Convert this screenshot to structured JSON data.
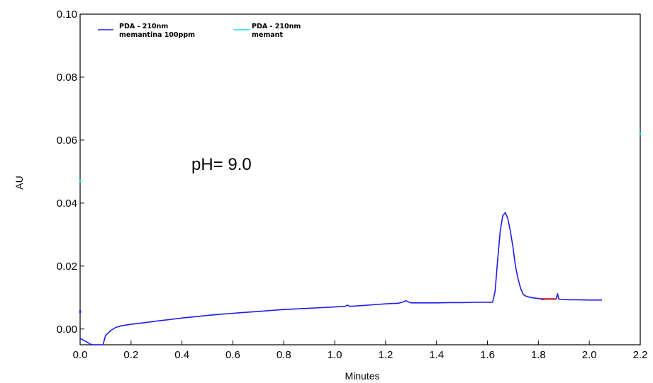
{
  "chart_data": {
    "type": "line",
    "xlabel": "Minutes",
    "ylabel": "AU",
    "xlim": [
      0.0,
      2.2
    ],
    "ylim": [
      -0.005,
      0.1
    ],
    "x_ticks": [
      "0.0",
      "0.2",
      "0.4",
      "0.6",
      "0.8",
      "1.0",
      "1.2",
      "1.4",
      "1.6",
      "1.8",
      "2.0",
      "2.2"
    ],
    "y_ticks": [
      "0.00",
      "0.02",
      "0.04",
      "0.06",
      "0.08",
      "0.10"
    ],
    "legend": [
      {
        "line1": "PDA - 210nm",
        "line2": "memantina 100ppm",
        "color": "#1c1cf0"
      },
      {
        "line1": "PDA - 210nm",
        "line2": "memant",
        "color": "#00e0e8"
      }
    ],
    "annotation": "pH= 9.0",
    "series": [
      {
        "color": "#1c1cf0",
        "x": [
          0.0,
          0.01,
          0.02,
          0.03,
          0.04,
          0.05,
          0.06,
          0.07,
          0.08,
          0.09,
          0.095,
          0.1,
          0.12,
          0.14,
          0.16,
          0.2,
          0.25,
          0.3,
          0.35,
          0.4,
          0.45,
          0.5,
          0.55,
          0.6,
          0.65,
          0.7,
          0.75,
          0.8,
          0.85,
          0.9,
          0.95,
          1.0,
          1.04,
          1.05,
          1.06,
          1.1,
          1.15,
          1.2,
          1.25,
          1.27,
          1.28,
          1.29,
          1.3,
          1.35,
          1.4,
          1.45,
          1.5,
          1.55,
          1.6,
          1.62,
          1.63,
          1.64,
          1.65,
          1.66,
          1.67,
          1.68,
          1.69,
          1.7,
          1.71,
          1.72,
          1.73,
          1.74,
          1.75,
          1.77,
          1.79,
          1.81,
          1.83,
          1.85,
          1.87,
          1.875,
          1.88,
          1.885,
          1.89,
          1.92,
          1.95,
          2.0,
          2.05
        ],
        "y": [
          -0.003,
          -0.0034,
          -0.0038,
          -0.0043,
          -0.0048,
          -0.0058,
          -0.0065,
          -0.007,
          -0.0068,
          -0.0062,
          -0.0035,
          -0.002,
          -0.0005,
          0.0005,
          0.001,
          0.0015,
          0.002,
          0.0025,
          0.003,
          0.0035,
          0.0039,
          0.0043,
          0.0047,
          0.005,
          0.0053,
          0.0056,
          0.0059,
          0.0062,
          0.0064,
          0.0066,
          0.0068,
          0.007,
          0.0072,
          0.0076,
          0.0072,
          0.0074,
          0.0077,
          0.008,
          0.0082,
          0.0086,
          0.009,
          0.0086,
          0.0083,
          0.0083,
          0.0083,
          0.0084,
          0.0084,
          0.0085,
          0.0085,
          0.0085,
          0.012,
          0.022,
          0.031,
          0.036,
          0.037,
          0.035,
          0.031,
          0.026,
          0.02,
          0.016,
          0.013,
          0.011,
          0.0105,
          0.01,
          0.0098,
          0.0096,
          0.0096,
          0.0096,
          0.0096,
          0.0112,
          0.0096,
          0.0094,
          0.0094,
          0.0093,
          0.0093,
          0.0092,
          0.0092
        ]
      },
      {
        "color": "#e01818",
        "x": [
          1.81,
          1.83,
          1.85,
          1.87
        ],
        "y": [
          0.0094,
          0.0095,
          0.0095,
          0.0095
        ]
      }
    ],
    "edge_marks": [
      {
        "color": "#00e0e8",
        "x": 0.0,
        "y": 0.047
      },
      {
        "color": "#00e0e8",
        "x": 2.2,
        "y": 0.062
      },
      {
        "color": "#1c1cf0",
        "x": 0.0,
        "y": 0.0055
      }
    ]
  }
}
